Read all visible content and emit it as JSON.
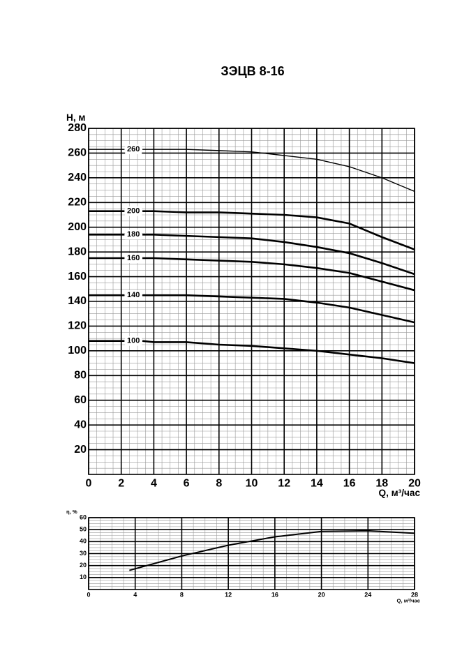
{
  "chart_data": [
    {
      "type": "line",
      "title": "ЗЭЦВ 8-16",
      "y_label": "H, м",
      "x_label": "Q, м³/час",
      "xlim": [
        0,
        20
      ],
      "xticks": [
        0,
        2,
        4,
        6,
        8,
        10,
        12,
        14,
        16,
        18,
        20
      ],
      "ylim": [
        0,
        280
      ],
      "yticks": [
        20,
        40,
        60,
        80,
        100,
        120,
        140,
        160,
        180,
        200,
        220,
        240,
        260,
        280
      ],
      "grid": true,
      "x": [
        0,
        2.2,
        2.7,
        3.3,
        4,
        6,
        8,
        10,
        12,
        14,
        16,
        18,
        20
      ],
      "series": [
        {
          "name": "260",
          "color": "#000",
          "values": [
            263,
            263,
            null,
            263,
            263,
            263,
            262,
            261,
            258,
            255,
            249,
            240,
            229
          ]
        },
        {
          "name": "200",
          "color": "#000",
          "values": [
            213,
            213,
            null,
            213,
            213,
            212,
            212,
            211,
            210,
            208,
            203,
            192,
            182
          ]
        },
        {
          "name": "180",
          "color": "#000",
          "values": [
            194,
            194,
            null,
            194,
            194,
            193,
            192,
            191,
            188,
            184,
            179,
            171,
            162
          ]
        },
        {
          "name": "160",
          "color": "#000",
          "values": [
            175,
            175,
            null,
            175,
            175,
            174,
            173,
            172,
            170,
            167,
            163,
            156,
            149
          ]
        },
        {
          "name": "140",
          "color": "#000",
          "values": [
            145,
            145,
            null,
            145,
            145,
            145,
            144,
            143,
            142,
            139,
            135,
            129,
            123
          ]
        },
        {
          "name": "100",
          "color": "#000",
          "values": [
            108,
            108,
            null,
            108,
            107,
            107,
            105,
            104,
            102,
            100,
            97,
            94,
            90
          ]
        }
      ]
    },
    {
      "type": "line",
      "y_label": "η, %",
      "x_label": "Q, м³/час",
      "xlim": [
        0,
        28
      ],
      "xticks": [
        0,
        4,
        8,
        12,
        16,
        20,
        24,
        28
      ],
      "ylim": [
        0,
        60
      ],
      "yticks": [
        10,
        20,
        30,
        40,
        50,
        60
      ],
      "grid": true,
      "x": [
        3.5,
        8,
        12,
        16,
        20,
        24,
        28
      ],
      "series": [
        {
          "color": "#000",
          "values": [
            16,
            28,
            37,
            44,
            48.5,
            49,
            47
          ]
        }
      ]
    }
  ]
}
